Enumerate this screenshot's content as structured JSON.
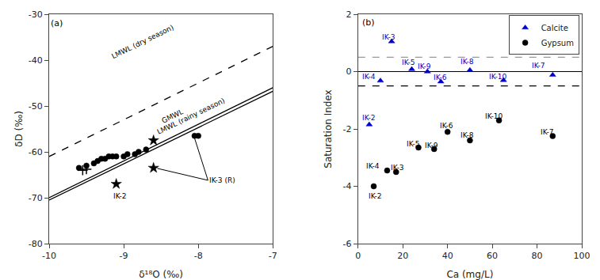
{
  "chart_data": [
    {
      "type": "scatter",
      "xlabel": "δ¹⁸O (‰)",
      "ylabel": "δD (‰)",
      "xlim": [
        -10.0,
        -7.0
      ],
      "ylim": [
        -80,
        -30
      ],
      "xticks": [
        -10,
        -9,
        -8,
        -7
      ],
      "yticks": [
        -80,
        -70,
        -60,
        -50,
        -40,
        -30
      ],
      "grid": false,
      "series": [
        {
          "type": "line",
          "line_style": "dashed",
          "color": "#000000",
          "x": [
            -10.0,
            -7.0
          ],
          "values": [
            -61.0,
            -37.0
          ],
          "label": {
            "text": "LMWL (dry season)",
            "x": -8.75,
            "y": -40.5
          }
        },
        {
          "type": "line",
          "line_style": "solid",
          "color": "#000000",
          "x": [
            -10.0,
            -7.0
          ],
          "values": [
            -70.0,
            -46.0
          ],
          "label": {
            "text": "GMWL",
            "x": -8.35,
            "y": -54.5
          }
        },
        {
          "type": "line",
          "line_style": "solid",
          "color": "#000000",
          "x": [
            -10.0,
            -7.0
          ],
          "values": [
            -70.5,
            -46.8
          ],
          "label": {
            "text": "LMWL (rainy season)",
            "x": -8.1,
            "y": -57.0
          }
        },
        {
          "type": "scatter",
          "marker": "circle",
          "color": "#000000",
          "x": [
            -9.6,
            -9.5,
            -9.4,
            -9.35,
            -9.3,
            -9.25,
            -9.2,
            -9.15,
            -9.1,
            -9.0,
            -8.95,
            -8.85,
            -8.8,
            -8.7,
            -8.05,
            -8.0
          ],
          "values": [
            -63.5,
            -63.0,
            -62.5,
            -62.0,
            -61.5,
            -61.5,
            -61.0,
            -61.0,
            -61.0,
            -61.0,
            -60.5,
            -60.5,
            -60.0,
            -59.5,
            -56.5,
            -56.5
          ]
        },
        {
          "type": "scatter",
          "marker": "plus",
          "color": "#000000",
          "x": [
            -9.55,
            -9.5
          ],
          "values": [
            -64.0,
            -63.8
          ]
        },
        {
          "type": "scatter",
          "marker": "star",
          "color": "#000000",
          "x": [
            -9.1,
            -8.6,
            -8.6
          ],
          "values": [
            -67.0,
            -57.5,
            -63.5
          ]
        }
      ],
      "annotations": [
        {
          "text": "IK-2",
          "x": -9.05,
          "y": -68.5
        },
        {
          "text": "IK-3 (R)",
          "x": -7.87,
          "y": -66.2,
          "targets": [
            [
              -8.05,
              -57.0
            ],
            [
              -8.55,
              -63.6
            ]
          ]
        },
        {
          "text": "(a)",
          "x": -10.0,
          "y": -30.5
        }
      ]
    },
    {
      "type": "scatter",
      "xlabel": "Ca (mg/L)",
      "ylabel": "Saturation Index",
      "xlim": [
        0,
        100
      ],
      "ylim": [
        -6,
        2
      ],
      "xticks": [
        0,
        20,
        40,
        60,
        80,
        100
      ],
      "yticks": [
        -6,
        -4,
        -2,
        0,
        2
      ],
      "grid": false,
      "legend": "upper right",
      "reference_lines": [
        {
          "y": 0,
          "color": "#000000",
          "line_style": "solid"
        },
        {
          "y": 0.5,
          "color": "#999999",
          "line_style": "dashed"
        },
        {
          "y": -0.5,
          "color": "#000000",
          "line_style": "dashed"
        }
      ],
      "series": [
        {
          "name": "Calcite",
          "type": "scatter",
          "marker": "triangle-up",
          "color": "#0000cc",
          "x": [
            5,
            15,
            10,
            24,
            37,
            87,
            50,
            31,
            65
          ],
          "values": [
            -1.85,
            1.05,
            -0.32,
            0.08,
            -0.35,
            -0.12,
            0.05,
            0.0,
            -0.3
          ],
          "labels": [
            "IK-2",
            "IK-3",
            "IK-4",
            "IK-5",
            "IK-6",
            "IK-7",
            "IK-8",
            "IK-9",
            "IK-10"
          ],
          "label_x": [
            1,
            10,
            1,
            19,
            33,
            77,
            45,
            26,
            58
          ],
          "label_y": [
            -1.62,
            1.2,
            -0.18,
            0.32,
            -0.22,
            0.22,
            0.35,
            0.18,
            -0.18
          ]
        },
        {
          "name": "Gypsum",
          "type": "scatter",
          "marker": "circle",
          "color": "#000000",
          "x": [
            7,
            17,
            13,
            27,
            40,
            87,
            50,
            34,
            63
          ],
          "values": [
            -4.0,
            -3.5,
            -3.45,
            -2.65,
            -2.1,
            -2.25,
            -2.4,
            -2.7,
            -1.7
          ],
          "labels": [
            "IK-2",
            "IK-3",
            "IK-4",
            "IK-5",
            "IK-6",
            "IK-7",
            "IK-8",
            "IK-9",
            "IK-10"
          ],
          "label_x": [
            4,
            14,
            3,
            21,
            36,
            81,
            45,
            29,
            56
          ],
          "label_y": [
            -4.35,
            -3.35,
            -3.3,
            -2.52,
            -1.9,
            -2.1,
            -2.22,
            -2.58,
            -1.55
          ]
        }
      ],
      "annotations": [
        {
          "text": "(b)",
          "x": 1,
          "y": 1.95
        }
      ]
    }
  ]
}
